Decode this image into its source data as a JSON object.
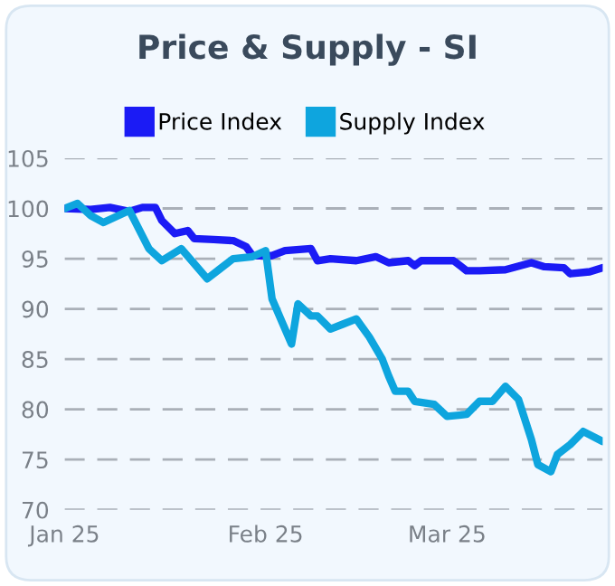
{
  "chart_data": {
    "type": "line",
    "title": "Price & Supply - SI",
    "series": [
      {
        "name": "Price Index",
        "color": "#1b1bf5",
        "x": [
          "2025-01-01",
          "2025-01-05",
          "2025-01-08",
          "2025-01-11",
          "2025-01-13",
          "2025-01-15",
          "2025-01-16",
          "2025-01-18",
          "2025-01-20",
          "2025-01-21",
          "2025-01-24",
          "2025-01-27",
          "2025-01-29",
          "2025-01-30",
          "2025-02-02",
          "2025-02-04",
          "2025-02-08",
          "2025-02-09",
          "2025-02-11",
          "2025-02-15",
          "2025-02-18",
          "2025-02-20",
          "2025-02-23",
          "2025-02-24",
          "2025-02-25",
          "2025-03-02",
          "2025-03-04",
          "2025-03-06",
          "2025-03-10",
          "2025-03-14",
          "2025-03-16",
          "2025-03-19",
          "2025-03-20",
          "2025-03-23",
          "2025-03-25"
        ],
        "values": [
          100,
          99.9,
          100.1,
          99.7,
          100.1,
          100.1,
          98.8,
          97.5,
          97.8,
          97,
          96.9,
          96.8,
          96.2,
          95.3,
          95.3,
          95.8,
          96,
          94.8,
          95,
          94.8,
          95.2,
          94.6,
          94.8,
          94.3,
          94.8,
          94.8,
          93.8,
          93.8,
          93.9,
          94.6,
          94.2,
          94.1,
          93.5,
          93.7,
          94.1
        ]
      },
      {
        "name": "Supply Index",
        "color": "#0ea5de",
        "x": [
          "2025-01-01",
          "2025-01-03",
          "2025-01-05",
          "2025-01-07",
          "2025-01-11",
          "2025-01-14",
          "2025-01-16",
          "2025-01-19",
          "2025-01-23",
          "2025-01-25",
          "2025-01-27",
          "2025-01-30",
          "2025-02-01",
          "2025-02-02",
          "2025-02-05",
          "2025-02-06",
          "2025-02-08",
          "2025-02-09",
          "2025-02-11",
          "2025-02-13",
          "2025-02-15",
          "2025-02-17",
          "2025-02-19",
          "2025-02-20",
          "2025-02-21",
          "2025-02-23",
          "2025-02-24",
          "2025-02-27",
          "2025-03-01",
          "2025-03-04",
          "2025-03-06",
          "2025-03-08",
          "2025-03-10",
          "2025-03-12",
          "2025-03-14",
          "2025-03-15",
          "2025-03-17",
          "2025-03-18",
          "2025-03-20",
          "2025-03-22",
          "2025-03-25"
        ],
        "values": [
          100,
          100.5,
          99.3,
          98.6,
          99.8,
          96,
          94.8,
          96,
          93,
          94,
          95,
          95.2,
          95.8,
          91,
          86.5,
          90.5,
          89.3,
          89.3,
          88,
          88.5,
          89,
          87.2,
          85,
          83.3,
          81.8,
          81.8,
          80.8,
          80.5,
          79.3,
          79.5,
          80.8,
          80.8,
          82.3,
          81,
          77,
          74.5,
          73.8,
          75.5,
          76.5,
          77.8,
          76.8
        ]
      }
    ],
    "xlim": [
      "2025-01-01",
      "2025-03-25"
    ],
    "xticks": [
      {
        "value": "2025-01-01",
        "label": "Jan 25"
      },
      {
        "value": "2025-02-01",
        "label": "Feb 25"
      },
      {
        "value": "2025-03-01",
        "label": "Mar 25"
      }
    ],
    "ylim": [
      70,
      105
    ],
    "yticks": [
      70,
      75,
      80,
      85,
      90,
      95,
      100,
      105
    ],
    "grid": "y",
    "legend": "top",
    "marker": "none",
    "line_style": "solid"
  }
}
